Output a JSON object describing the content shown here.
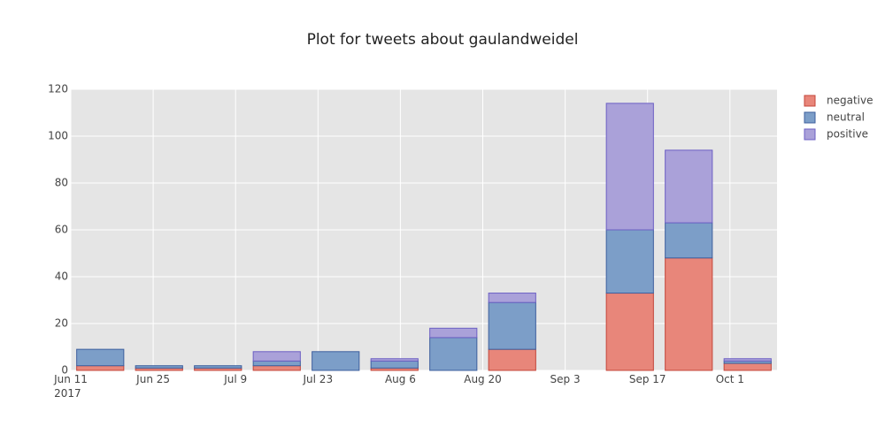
{
  "chart_data": {
    "type": "bar",
    "barmode": "stack",
    "title": "Plot for tweets about gaulandweidel",
    "x": [
      "2017-06-16",
      "2017-06-26",
      "2017-07-06",
      "2017-07-16",
      "2017-07-26",
      "2017-08-05",
      "2017-08-15",
      "2017-08-25",
      "2017-09-14",
      "2017-09-24",
      "2017-10-04"
    ],
    "series": [
      {
        "name": "negative",
        "color": "#e8867a",
        "line_color": "#c4453a",
        "values": [
          2,
          1,
          1,
          2,
          0,
          1,
          0,
          9,
          33,
          48,
          3
        ]
      },
      {
        "name": "neutral",
        "color": "#7c9ec8",
        "line_color": "#3d5f9e",
        "values": [
          7,
          1,
          1,
          2,
          8,
          3,
          14,
          20,
          27,
          15,
          1
        ]
      },
      {
        "name": "positive",
        "color": "#aaa1d9",
        "line_color": "#6c5fc4",
        "values": [
          0,
          0,
          0,
          4,
          0,
          1,
          4,
          4,
          54,
          31,
          1
        ]
      }
    ],
    "xlim": [
      "2017-06-11",
      "2017-10-09"
    ],
    "xticks": [
      {
        "value": "2017-06-11",
        "label": "Jun 11\n2017"
      },
      {
        "value": "2017-06-25",
        "label": "Jun 25"
      },
      {
        "value": "2017-07-09",
        "label": "Jul 9"
      },
      {
        "value": "2017-07-23",
        "label": "Jul 23"
      },
      {
        "value": "2017-08-06",
        "label": "Aug 6"
      },
      {
        "value": "2017-08-20",
        "label": "Aug 20"
      },
      {
        "value": "2017-09-03",
        "label": "Sep 3"
      },
      {
        "value": "2017-09-17",
        "label": "Sep 17"
      },
      {
        "value": "2017-10-01",
        "label": "Oct 1"
      }
    ],
    "ylim": [
      0,
      120
    ],
    "yticks": [
      0,
      20,
      40,
      60,
      80,
      100,
      120
    ],
    "grid": true,
    "legend": "right"
  }
}
